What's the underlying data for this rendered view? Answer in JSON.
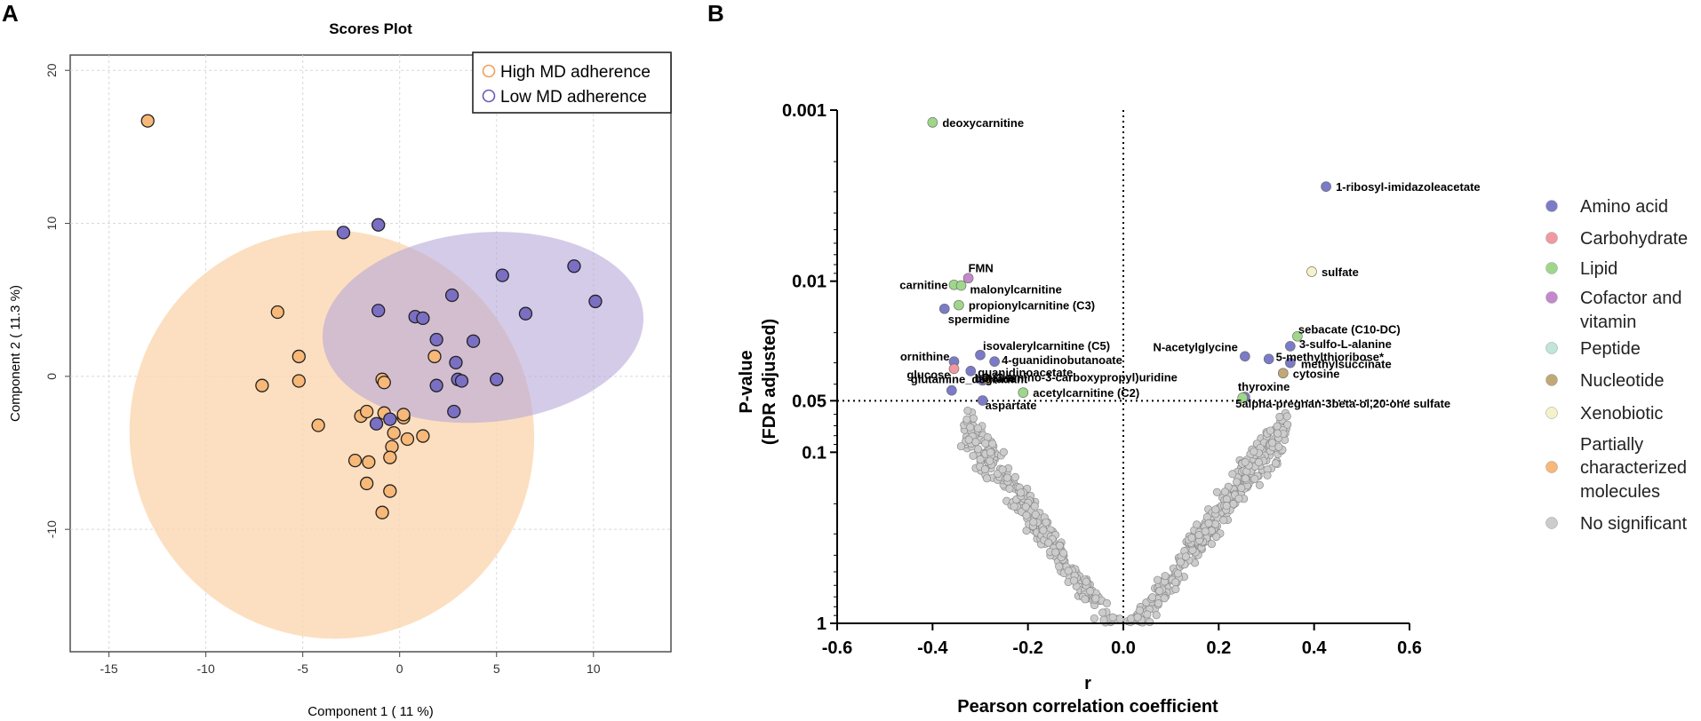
{
  "panels": {
    "a_letter": "A",
    "b_letter": "B"
  },
  "colors": {
    "high_fill": "#f7b878",
    "low_fill": "#7b6fc4",
    "high_ellipse": "#fbd7b0",
    "low_ellipse": "#b8a8d8",
    "grey": "#cccccc"
  },
  "chart_data": [
    {
      "type": "scatter",
      "title": "Scores Plot",
      "xlabel": "Component 1 ( 11 %)",
      "ylabel": "Component 2 ( 11.3 %)",
      "xlim": [
        -17,
        14
      ],
      "ylim": [
        -18,
        21
      ],
      "xticks": [
        -15,
        -10,
        -5,
        0,
        5,
        10
      ],
      "yticks": [
        20,
        10,
        0,
        -10
      ],
      "xtick_labels": [
        "-15",
        "-10",
        "-5",
        "0",
        "5",
        "10"
      ],
      "ytick_labels": [
        "20",
        "10",
        "0",
        "-10"
      ],
      "grid": true,
      "legend": [
        "High MD adherence",
        "Low MD adherence"
      ],
      "series": [
        {
          "name": "High MD adherence",
          "points": [
            [
              -13.0,
              16.7
            ],
            [
              -6.3,
              4.2
            ],
            [
              -7.1,
              -0.6
            ],
            [
              -5.2,
              1.3
            ],
            [
              -5.2,
              -0.3
            ],
            [
              -4.2,
              -3.2
            ],
            [
              -2.0,
              -2.6
            ],
            [
              -1.7,
              -2.3
            ],
            [
              -2.3,
              -5.5
            ],
            [
              -1.6,
              -5.6
            ],
            [
              -1.7,
              -7.0
            ],
            [
              -0.9,
              -8.9
            ],
            [
              -0.5,
              -7.5
            ],
            [
              -0.9,
              -0.2
            ],
            [
              -0.8,
              -0.4
            ],
            [
              -0.8,
              -2.4
            ],
            [
              -0.3,
              -3.7
            ],
            [
              -0.4,
              -4.6
            ],
            [
              -0.5,
              -5.3
            ],
            [
              0.2,
              -2.7
            ],
            [
              0.2,
              -2.5
            ],
            [
              0.4,
              -4.1
            ],
            [
              1.2,
              -3.9
            ],
            [
              1.8,
              1.3
            ]
          ]
        },
        {
          "name": "Low MD adherence",
          "points": [
            [
              -2.9,
              9.4
            ],
            [
              -1.1,
              9.9
            ],
            [
              -1.1,
              4.3
            ],
            [
              0.8,
              3.9
            ],
            [
              1.2,
              3.8
            ],
            [
              1.9,
              2.4
            ],
            [
              2.7,
              5.3
            ],
            [
              3.8,
              2.3
            ],
            [
              5.3,
              6.6
            ],
            [
              6.5,
              4.1
            ],
            [
              9.0,
              7.2
            ],
            [
              10.1,
              4.9
            ],
            [
              3.0,
              -0.2
            ],
            [
              3.2,
              -0.3
            ],
            [
              2.9,
              0.9
            ],
            [
              5.0,
              -0.2
            ],
            [
              1.9,
              -0.6
            ],
            [
              2.8,
              -2.3
            ],
            [
              -1.2,
              -3.1
            ],
            [
              -0.5,
              -2.8
            ]
          ]
        }
      ],
      "ellipses": [
        {
          "name": "High MD adherence",
          "cx": -3.5,
          "cy": -3.8,
          "rx": 10.4,
          "ry": 13.4,
          "angle_deg": -28
        },
        {
          "name": "Low MD adherence",
          "cx": 4.3,
          "cy": 3.2,
          "rx": 8.3,
          "ry": 6.2,
          "angle_deg": -5
        }
      ]
    },
    {
      "type": "scatter",
      "title": "",
      "xlabel_top": "r",
      "xlabel": "Pearson correlation coefficient",
      "ylabel_line1": "P-value",
      "ylabel_line2": "(FDR adjusted)",
      "y_scale": "log-reversed",
      "xlim": [
        -0.6,
        0.6
      ],
      "ylim": [
        1,
        0.001
      ],
      "xticks": [
        -0.6,
        -0.4,
        -0.2,
        0.0,
        0.2,
        0.4,
        0.6
      ],
      "xtick_labels": [
        "-0.6",
        "-0.4",
        "-0.2",
        "0.0",
        "0.2",
        "0.4",
        "0.6"
      ],
      "yticks": [
        0.001,
        0.01,
        0.05,
        0.1,
        1
      ],
      "ytick_labels": [
        "0.001",
        "0.01",
        "0.05",
        "0.1",
        "1"
      ],
      "threshold_p": 0.05,
      "legend": [
        {
          "label": "Amino acid",
          "color": "#7b7bc8"
        },
        {
          "label": "Carbohydrate",
          "color": "#f09aa0"
        },
        {
          "label": "Lipid",
          "color": "#9fd78a"
        },
        {
          "label": "Cofactor and vitamin",
          "color": "#c488cc"
        },
        {
          "label": "Peptide",
          "color": "#bfe6d8"
        },
        {
          "label": "Nucleotide",
          "color": "#c2a876"
        },
        {
          "label": "Xenobiotic",
          "color": "#f5f2c8"
        },
        {
          "label": "Partially characterized molecules",
          "color": "#f7b878"
        },
        {
          "label": "No significant",
          "color": "#cccccc"
        }
      ],
      "significant": [
        {
          "name": "deoxycarnitine",
          "r": -0.4,
          "p": 0.00118,
          "cat": "Lipid"
        },
        {
          "name": "1-ribosyl-imidazoleacetate",
          "r": 0.425,
          "p": 0.0028,
          "cat": "Amino acid"
        },
        {
          "name": "sulfate",
          "r": 0.395,
          "p": 0.0088,
          "cat": "Xenobiotic"
        },
        {
          "name": "FMN",
          "r": -0.325,
          "p": 0.0096,
          "cat": "Cofactor and vitamin"
        },
        {
          "name": "carnitine",
          "r": -0.355,
          "p": 0.0105,
          "cat": "Lipid"
        },
        {
          "name": "malonylcarnitine",
          "r": -0.34,
          "p": 0.0106,
          "cat": "Lipid"
        },
        {
          "name": "propionylcarnitine (C3)",
          "r": -0.345,
          "p": 0.0138,
          "cat": "Lipid"
        },
        {
          "name": "spermidine",
          "r": -0.375,
          "p": 0.0145,
          "cat": "Amino acid"
        },
        {
          "name": "sebacate (C10-DC)",
          "r": 0.365,
          "p": 0.021,
          "cat": "Lipid"
        },
        {
          "name": "3-sulfo-L-alanine",
          "r": 0.35,
          "p": 0.024,
          "cat": "Amino acid"
        },
        {
          "name": "N-acetylglycine",
          "r": 0.255,
          "p": 0.0275,
          "cat": "Amino acid"
        },
        {
          "name": "5-methylthioribose*",
          "r": 0.305,
          "p": 0.0285,
          "cat": "Amino acid"
        },
        {
          "name": "methylsuccinate",
          "r": 0.35,
          "p": 0.03,
          "cat": "Amino acid"
        },
        {
          "name": "cytosine",
          "r": 0.335,
          "p": 0.0345,
          "cat": "Nucleotide"
        },
        {
          "name": "thyroxine",
          "r": 0.255,
          "p": 0.0475,
          "cat": "Amino acid"
        },
        {
          "name": "5alpha-pregnan-3beta-ol,20-one sulfate",
          "r": 0.25,
          "p": 0.048,
          "cat": "Lipid"
        },
        {
          "name": "isovalerylcarnitine (C5)",
          "r": -0.3,
          "p": 0.027,
          "cat": "Amino acid"
        },
        {
          "name": "4-guanidinobutanoate",
          "r": -0.27,
          "p": 0.0295,
          "cat": "Amino acid"
        },
        {
          "name": "ornithine",
          "r": -0.355,
          "p": 0.0295,
          "cat": "Amino acid"
        },
        {
          "name": "glucose",
          "r": -0.355,
          "p": 0.0325,
          "cat": "Carbohydrate"
        },
        {
          "name": "guanidinoacetate",
          "r": -0.32,
          "p": 0.0335,
          "cat": "Amino acid"
        },
        {
          "name": "betaine",
          "r": -0.295,
          "p": 0.038,
          "cat": "Amino acid"
        },
        {
          "name": "3-(3-amino-3-carboxypropyl)uridine",
          "r": -0.285,
          "p": 0.0375,
          "cat": "Nucleotide"
        },
        {
          "name": "acetylcarnitine (C2)",
          "r": -0.21,
          "p": 0.0448,
          "cat": "Lipid"
        },
        {
          "name": "glutamine_degradant",
          "r": -0.36,
          "p": 0.0435,
          "cat": "Amino acid"
        },
        {
          "name": "aspartate",
          "r": -0.295,
          "p": 0.0498,
          "cat": "Amino acid"
        }
      ]
    }
  ]
}
